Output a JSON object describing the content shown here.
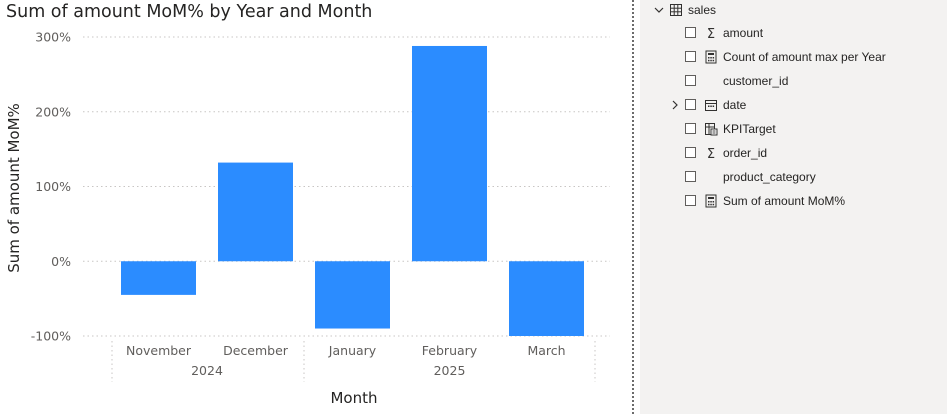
{
  "chart_data": {
    "type": "bar",
    "title": "Sum of amount MoM% by Year and Month",
    "xlabel": "Month",
    "ylabel": "Sum of amount MoM%",
    "categories": [
      "November",
      "December",
      "January",
      "February",
      "March"
    ],
    "groups": [
      {
        "label": "2024",
        "categories": [
          "November",
          "December"
        ]
      },
      {
        "label": "2025",
        "categories": [
          "January",
          "February",
          "March"
        ]
      }
    ],
    "values": [
      -45,
      132,
      -90,
      288,
      -100
    ],
    "value_unit": "%",
    "y_ticks": [
      300,
      200,
      100,
      0,
      -100
    ],
    "y_tick_labels": [
      "300%",
      "200%",
      "100%",
      "0%",
      "-100%"
    ],
    "ylim": [
      -100,
      300
    ],
    "grid": true,
    "bar_color": "#2b8cff"
  },
  "fields_pane": {
    "table": {
      "name": "sales",
      "icon": "table-icon",
      "expanded": true
    },
    "fields": [
      {
        "name": "amount",
        "icon": "sigma-icon",
        "checked": false,
        "expandable": false
      },
      {
        "name": "Count of amount max per Year",
        "icon": "calculator-icon",
        "checked": false,
        "expandable": false
      },
      {
        "name": "customer_id",
        "icon": "",
        "checked": false,
        "expandable": false
      },
      {
        "name": "date",
        "icon": "calendar-icon",
        "checked": false,
        "expandable": true
      },
      {
        "name": "KPITarget",
        "icon": "calculated-table-icon",
        "checked": false,
        "expandable": false
      },
      {
        "name": "order_id",
        "icon": "sigma-icon",
        "checked": false,
        "expandable": false
      },
      {
        "name": "product_category",
        "icon": "",
        "checked": false,
        "expandable": false
      },
      {
        "name": "Sum of amount MoM%",
        "icon": "calculator-icon",
        "checked": false,
        "expandable": false
      }
    ]
  }
}
